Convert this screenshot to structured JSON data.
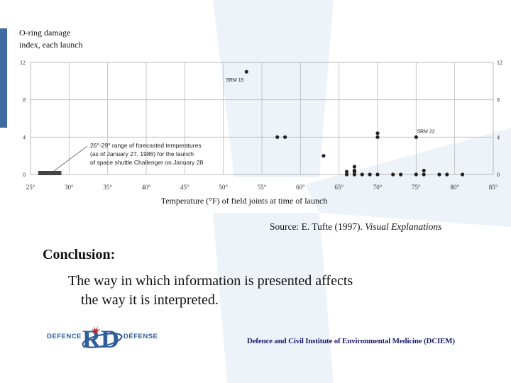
{
  "chart_data": {
    "type": "scatter",
    "ylabel_lines": [
      "O-ring damage",
      "index, each launch"
    ],
    "xlabel": "Temperature (°F) of field joints at time of launch",
    "x_ticks": [
      "25°",
      "30°",
      "35°",
      "40°",
      "45°",
      "50°",
      "55°",
      "60°",
      "65°",
      "70°",
      "75°",
      "80°",
      "85°"
    ],
    "x_tick_values": [
      25,
      30,
      35,
      40,
      45,
      50,
      55,
      60,
      65,
      70,
      75,
      80,
      85
    ],
    "y_ticks": [
      "0",
      "4",
      "8",
      "12"
    ],
    "y_tick_values": [
      0,
      4,
      8,
      12
    ],
    "xlim": [
      25,
      85
    ],
    "ylim": [
      0,
      12
    ],
    "grid": true,
    "points": [
      {
        "x": 53,
        "y": 11
      },
      {
        "x": 57,
        "y": 4
      },
      {
        "x": 58,
        "y": 4
      },
      {
        "x": 63,
        "y": 2
      },
      {
        "x": 66,
        "y": 0
      },
      {
        "x": 67,
        "y": 0
      },
      {
        "x": 67,
        "y": 0
      },
      {
        "x": 67,
        "y": 0
      },
      {
        "x": 68,
        "y": 0
      },
      {
        "x": 69,
        "y": 0
      },
      {
        "x": 70,
        "y": 0
      },
      {
        "x": 70,
        "y": 4
      },
      {
        "x": 70,
        "y": 4
      },
      {
        "x": 72,
        "y": 0
      },
      {
        "x": 73,
        "y": 0
      },
      {
        "x": 75,
        "y": 0
      },
      {
        "x": 75,
        "y": 4
      },
      {
        "x": 76,
        "y": 0
      },
      {
        "x": 76,
        "y": 0
      },
      {
        "x": 78,
        "y": 0
      },
      {
        "x": 79,
        "y": 0
      },
      {
        "x": 81,
        "y": 0
      },
      {
        "x": 66,
        "y": 0.3
      },
      {
        "x": 67,
        "y": 0.3
      }
    ],
    "point_labels": [
      {
        "text": "SRM 15",
        "x": 53,
        "y": 11
      },
      {
        "text": "SRM 22",
        "x": 75,
        "y": 4
      }
    ],
    "forecast_range": {
      "x_min": 26,
      "x_max": 29,
      "y": 0
    },
    "annotation_lines": [
      "26°-29° range of forecasted temperatures",
      "(as of January 27, 1986) for the launch",
      "of space shuttle Challenger on January 28"
    ]
  },
  "source": {
    "prefix": "Source: E. Tufte (1997). ",
    "title": "Visual Explanations"
  },
  "conclusion": {
    "title": "Conclusion:",
    "line1": "The way in which information is presented affects",
    "line2": "the way it is interpreted."
  },
  "logo": {
    "left_text": "DEFENCE",
    "right_text": "DÉFENSE",
    "mark_text": "RD"
  },
  "organization": "Defence and Civil Institute of Environmental Medicine (DCIEM)",
  "colors": {
    "grid": "#b9b9b9",
    "point": "#222222",
    "logo": "#2f5e9b",
    "org_text": "#1b1b6b"
  }
}
